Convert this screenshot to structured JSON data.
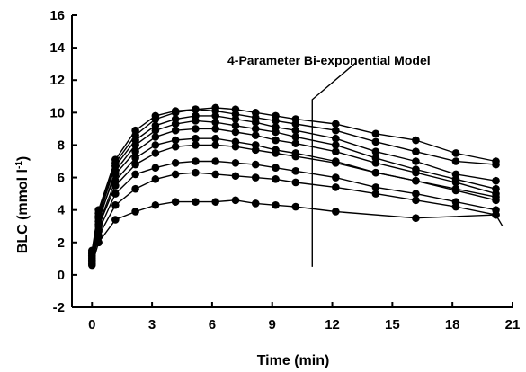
{
  "chart_data": {
    "type": "line",
    "title": "",
    "xlabel": "Time (min)",
    "ylabel": "BLC (mmol l",
    "ylabel_sup": "-1",
    "ylabel_close": ")",
    "xlim": [
      -1,
      21
    ],
    "ylim": [
      -2,
      16
    ],
    "xticks": [
      0,
      3,
      6,
      9,
      12,
      15,
      18,
      21
    ],
    "yticks": [
      -2,
      0,
      2,
      4,
      6,
      8,
      10,
      12,
      14,
      16
    ],
    "grid": false,
    "annotation": "4-Parameter Bi-exponential Model",
    "marker_color": "#000000",
    "line_color": "#000000",
    "series": [
      {
        "x": [
          0,
          0.33,
          1.17,
          2.17,
          3.17,
          4.17,
          5.17,
          6.17,
          7.17,
          8.17,
          9.17,
          10.17,
          12.17,
          14.17,
          16.17,
          18.17,
          20.17
        ],
        "y": [
          1.5,
          4.0,
          7.1,
          8.9,
          9.8,
          10.1,
          10.2,
          10.3,
          10.2,
          10.0,
          9.8,
          9.6,
          9.3,
          8.7,
          8.3,
          7.5,
          7.0
        ]
      },
      {
        "x": [
          0,
          0.33,
          1.17,
          2.17,
          3.17,
          4.17,
          5.17,
          6.17,
          7.17,
          8.17,
          9.17,
          10.17,
          12.17,
          14.17,
          16.17,
          18.17,
          20.17
        ],
        "y": [
          1.2,
          3.8,
          6.9,
          8.6,
          9.6,
          10.0,
          10.2,
          10.1,
          9.9,
          9.7,
          9.5,
          9.3,
          8.9,
          8.2,
          7.6,
          7.0,
          6.8
        ]
      },
      {
        "x": [
          0,
          0.33,
          1.17,
          2.17,
          3.17,
          4.17,
          5.17,
          6.17,
          7.17,
          8.17,
          9.17,
          10.17,
          12.17,
          14.17,
          16.17,
          18.17,
          20.17
        ],
        "y": [
          1.4,
          3.6,
          6.7,
          8.3,
          9.2,
          9.6,
          9.8,
          9.8,
          9.6,
          9.4,
          9.1,
          8.9,
          8.4,
          7.6,
          7.0,
          6.2,
          5.8
        ]
      },
      {
        "x": [
          0,
          0.33,
          1.17,
          2.17,
          3.17,
          4.17,
          5.17,
          6.17,
          7.17,
          8.17,
          9.17,
          10.17,
          12.17,
          14.17,
          16.17,
          18.17,
          20.17
        ],
        "y": [
          1.0,
          3.3,
          6.4,
          8.0,
          8.9,
          9.3,
          9.5,
          9.4,
          9.2,
          9.0,
          8.8,
          8.5,
          8.0,
          7.2,
          6.5,
          5.9,
          5.3
        ]
      },
      {
        "x": [
          0,
          0.33,
          1.17,
          2.17,
          3.17,
          4.17,
          5.17,
          6.17,
          7.17,
          8.17,
          9.17,
          10.17,
          12.17,
          14.17,
          16.17,
          18.17,
          20.17
        ],
        "y": [
          1.3,
          3.5,
          6.2,
          7.6,
          8.5,
          8.9,
          9.0,
          9.0,
          8.8,
          8.6,
          8.3,
          8.1,
          7.6,
          6.9,
          6.3,
          5.7,
          5.0
        ]
      },
      {
        "x": [
          0,
          0.33,
          1.17,
          2.17,
          3.17,
          4.17,
          5.17,
          6.17,
          7.17,
          8.17,
          9.17,
          10.17,
          12.17,
          14.17,
          16.17,
          18.17,
          20.17
        ],
        "y": [
          0.9,
          3.1,
          5.8,
          7.2,
          8.0,
          8.3,
          8.4,
          8.4,
          8.2,
          8.0,
          7.7,
          7.5,
          7.0,
          6.3,
          5.8,
          5.3,
          4.8
        ]
      },
      {
        "x": [
          0,
          0.33,
          1.17,
          2.17,
          3.17,
          4.17,
          5.17,
          6.17,
          7.17,
          8.17,
          9.17,
          10.17,
          12.17,
          14.17,
          16.17,
          18.17,
          20.17
        ],
        "y": [
          1.1,
          3.0,
          5.5,
          6.8,
          7.5,
          7.9,
          8.0,
          8.0,
          7.9,
          7.7,
          7.5,
          7.3,
          6.9,
          6.3,
          5.8,
          5.2,
          4.6
        ]
      },
      {
        "x": [
          0,
          0.33,
          1.17,
          2.17,
          3.17,
          4.17,
          5.17,
          6.17,
          7.17,
          8.17,
          9.17,
          10.17,
          12.17,
          14.17,
          16.17,
          18.17,
          20.17
        ],
        "y": [
          0.8,
          2.7,
          5.0,
          6.2,
          6.6,
          6.9,
          7.0,
          7.0,
          6.9,
          6.8,
          6.6,
          6.4,
          6.0,
          5.4,
          5.0,
          4.5,
          4.0
        ]
      },
      {
        "x": [
          0,
          0.33,
          1.17,
          2.17,
          3.17,
          4.17,
          5.17,
          6.17,
          7.17,
          8.17,
          9.17,
          10.17,
          12.17,
          14.17,
          16.17,
          18.17,
          20.17
        ],
        "y": [
          0.7,
          2.4,
          4.3,
          5.3,
          5.9,
          6.2,
          6.3,
          6.2,
          6.1,
          6.0,
          5.9,
          5.7,
          5.4,
          5.0,
          4.6,
          4.2,
          3.7
        ]
      },
      {
        "x": [
          0,
          0.33,
          1.17,
          2.17,
          3.17,
          4.17,
          5.17,
          6.17,
          7.17,
          8.17,
          9.17,
          10.17,
          12.17,
          16.17,
          20.17
        ],
        "y": [
          0.6,
          2.0,
          3.4,
          3.9,
          4.3,
          4.5,
          4.5,
          4.5,
          4.6,
          4.4,
          4.3,
          4.2,
          3.9,
          3.5,
          3.7
        ],
        "fit_x_end": 20.5,
        "fit_y_end": 3.0
      }
    ]
  }
}
